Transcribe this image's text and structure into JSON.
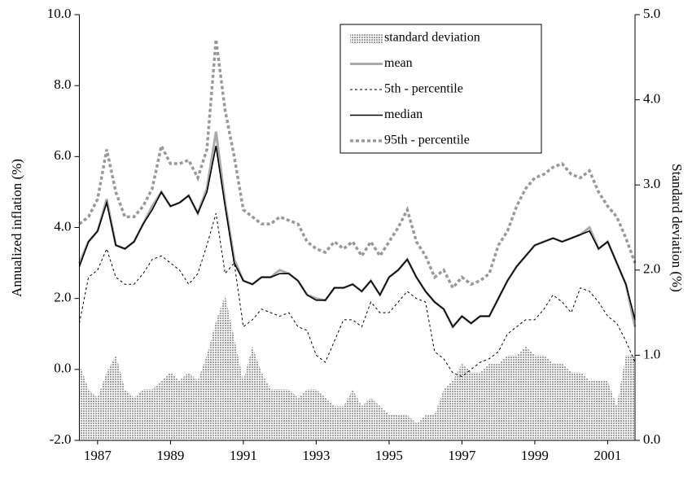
{
  "chart_data": {
    "type": "line",
    "categories": [
      null,
      null,
      "1987",
      null,
      null,
      null,
      null,
      null,
      null,
      null,
      "1989",
      null,
      null,
      null,
      null,
      null,
      null,
      null,
      "1991",
      null,
      null,
      null,
      null,
      null,
      null,
      null,
      "1993",
      null,
      null,
      null,
      null,
      null,
      null,
      null,
      "1995",
      null,
      null,
      null,
      null,
      null,
      null,
      null,
      "1997",
      null,
      null,
      null,
      null,
      null,
      null,
      null,
      "1999",
      null,
      null,
      null,
      null,
      null,
      null,
      null,
      "2001",
      null,
      null,
      null
    ],
    "y_label": "Annualized inflation (%)",
    "y2_label": "Standard deviation (%)",
    "ylim": [
      -2,
      10
    ],
    "yticks": [
      {
        "value": -2,
        "label": "-2.0"
      },
      {
        "value": 0,
        "label": "0.0"
      },
      {
        "value": 2,
        "label": "2.0"
      },
      {
        "value": 4,
        "label": "4.0"
      },
      {
        "value": 6,
        "label": "6.0"
      },
      {
        "value": 8,
        "label": "8.0"
      },
      {
        "value": 10,
        "label": "10.0"
      }
    ],
    "y2lim": [
      0,
      5
    ],
    "y2ticks": [
      {
        "value": 0,
        "label": "0.0"
      },
      {
        "value": 1,
        "label": "1.0"
      },
      {
        "value": 2,
        "label": "2.0"
      },
      {
        "value": 3,
        "label": "3.0"
      },
      {
        "value": 4,
        "label": "4.0"
      },
      {
        "value": 5,
        "label": "5.0"
      }
    ],
    "legend": "upper right",
    "series": [
      {
        "name": "standard deviation",
        "kind": "area",
        "axis": "y2",
        "color": "#333333",
        "values": [
          0.9,
          0.6,
          0.5,
          0.8,
          1.0,
          0.6,
          0.5,
          0.6,
          0.6,
          0.7,
          0.8,
          0.7,
          0.8,
          0.7,
          1.0,
          1.4,
          1.7,
          1.2,
          0.7,
          1.1,
          0.8,
          0.6,
          0.6,
          0.6,
          0.5,
          0.6,
          0.6,
          0.5,
          0.4,
          0.4,
          0.6,
          0.4,
          0.5,
          0.4,
          0.3,
          0.3,
          0.3,
          0.2,
          0.3,
          0.3,
          0.6,
          0.7,
          0.9,
          0.8,
          0.8,
          0.9,
          0.9,
          1.0,
          1.0,
          1.1,
          1.0,
          1.0,
          0.9,
          0.9,
          0.8,
          0.8,
          0.7,
          0.7,
          0.7,
          0.4,
          1.0,
          1.0
        ]
      },
      {
        "name": "mean",
        "kind": "line",
        "color": "#aaaaaa",
        "width": 3,
        "dash": "none",
        "values": [
          3.0,
          3.6,
          3.9,
          4.8,
          3.5,
          3.4,
          3.6,
          4.1,
          4.6,
          5.0,
          4.6,
          4.7,
          4.9,
          4.4,
          5.1,
          6.7,
          4.7,
          3.1,
          2.5,
          2.4,
          2.6,
          2.6,
          2.8,
          2.7,
          2.5,
          2.1,
          2.0,
          1.95,
          2.3,
          2.3,
          2.4,
          2.2,
          2.5,
          2.1,
          2.6,
          2.8,
          3.1,
          2.6,
          2.2,
          1.9,
          1.7,
          1.2,
          1.5,
          1.3,
          1.5,
          1.5,
          2.0,
          2.5,
          2.9,
          3.2,
          3.5,
          3.6,
          3.7,
          3.6,
          3.7,
          3.8,
          4.0,
          3.4,
          3.6,
          3.0,
          2.4,
          1.2
        ]
      },
      {
        "name": "5th - percentile",
        "kind": "line",
        "color": "#000000",
        "width": 1,
        "dash": "3,3",
        "values": [
          1.3,
          2.6,
          2.8,
          3.4,
          2.6,
          2.4,
          2.4,
          2.7,
          3.1,
          3.2,
          3.0,
          2.8,
          2.4,
          2.7,
          3.5,
          4.4,
          2.7,
          3.0,
          1.2,
          1.4,
          1.7,
          1.6,
          1.5,
          1.6,
          1.2,
          1.1,
          0.4,
          0.2,
          0.8,
          1.4,
          1.4,
          1.2,
          1.9,
          1.6,
          1.6,
          1.9,
          2.2,
          2.0,
          1.9,
          0.5,
          0.3,
          -0.1,
          -0.2,
          0.0,
          0.2,
          0.3,
          0.5,
          1.0,
          1.2,
          1.4,
          1.4,
          1.7,
          2.1,
          1.9,
          1.6,
          2.3,
          2.2,
          1.9,
          1.5,
          1.3,
          0.8,
          0.2
        ]
      },
      {
        "name": "median",
        "kind": "line",
        "color": "#000000",
        "width": 1.6,
        "dash": "none",
        "values": [
          2.9,
          3.6,
          3.9,
          4.7,
          3.5,
          3.4,
          3.6,
          4.1,
          4.5,
          5.0,
          4.6,
          4.7,
          4.9,
          4.4,
          5.0,
          6.3,
          4.6,
          3.0,
          2.5,
          2.4,
          2.6,
          2.6,
          2.7,
          2.7,
          2.5,
          2.1,
          1.95,
          1.95,
          2.3,
          2.3,
          2.4,
          2.2,
          2.5,
          2.1,
          2.6,
          2.8,
          3.1,
          2.6,
          2.2,
          1.9,
          1.7,
          1.2,
          1.5,
          1.3,
          1.5,
          1.5,
          2.0,
          2.5,
          2.9,
          3.2,
          3.5,
          3.6,
          3.7,
          3.6,
          3.7,
          3.8,
          3.9,
          3.4,
          3.6,
          3.0,
          2.4,
          1.4
        ]
      },
      {
        "name": "95th - percentile",
        "kind": "line",
        "color": "#999999",
        "width": 3.5,
        "dash": "4,3",
        "values": [
          4.1,
          4.3,
          4.8,
          6.2,
          5.0,
          4.3,
          4.3,
          4.6,
          5.1,
          6.3,
          5.8,
          5.8,
          5.9,
          5.4,
          6.2,
          9.3,
          7.3,
          6.0,
          4.5,
          4.3,
          4.1,
          4.1,
          4.3,
          4.2,
          4.1,
          3.6,
          3.4,
          3.3,
          3.6,
          3.4,
          3.6,
          3.2,
          3.6,
          3.2,
          3.6,
          4.0,
          4.5,
          3.6,
          3.2,
          2.6,
          2.8,
          2.3,
          2.6,
          2.4,
          2.5,
          2.7,
          3.5,
          3.9,
          4.6,
          5.1,
          5.4,
          5.5,
          5.7,
          5.8,
          5.5,
          5.4,
          5.6,
          5.0,
          4.6,
          4.3,
          3.7,
          3.0
        ]
      }
    ]
  }
}
